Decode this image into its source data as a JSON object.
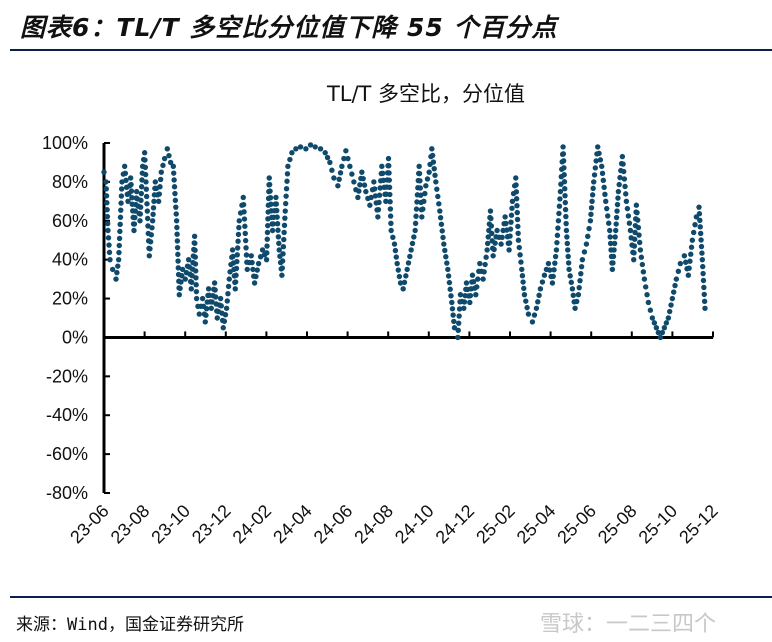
{
  "figure_title": "图表6：TL/T 多空比分位值下降 55 个百分点",
  "source": "来源：Wind，国金证券研究所",
  "watermark": "雪球：一二三四个",
  "colors": {
    "points": "#0f4a6c",
    "axis": "#000000",
    "rule": "#0b1f4d"
  },
  "chart_data": {
    "type": "scatter",
    "title": "TL/T 多空比，分位值",
    "xlabel": "",
    "ylabel": "",
    "ylim": [
      -80,
      100
    ],
    "y_ticks": [
      "100%",
      "80%",
      "60%",
      "40%",
      "20%",
      "0%",
      "-20%",
      "-40%",
      "-60%",
      "-80%"
    ],
    "y_tick_values": [
      100,
      80,
      60,
      40,
      20,
      0,
      -20,
      -40,
      -60,
      -80
    ],
    "x_range": [
      "2023-06-01",
      "2025-12-01"
    ],
    "x_ticks": [
      "23-06",
      "23-08",
      "23-10",
      "23-12",
      "24-02",
      "24-04",
      "24-06",
      "24-08",
      "24-10",
      "24-12",
      "25-02",
      "25-04",
      "25-06",
      "25-08",
      "25-10",
      "25-12"
    ],
    "grid": false,
    "legend": "none",
    "points": [
      [
        "2023-06-01",
        85
      ],
      [
        "2023-06-04",
        80
      ],
      [
        "2023-06-07",
        55
      ],
      [
        "2023-06-10",
        40
      ],
      [
        "2023-06-14",
        35
      ],
      [
        "2023-06-19",
        30
      ],
      [
        "2023-06-23",
        40
      ],
      [
        "2023-06-28",
        80
      ],
      [
        "2023-07-02",
        88
      ],
      [
        "2023-07-07",
        70
      ],
      [
        "2023-07-11",
        82
      ],
      [
        "2023-07-16",
        55
      ],
      [
        "2023-07-20",
        75
      ],
      [
        "2023-07-25",
        60
      ],
      [
        "2023-07-29",
        88
      ],
      [
        "2023-08-01",
        95
      ],
      [
        "2023-08-05",
        65
      ],
      [
        "2023-08-08",
        42
      ],
      [
        "2023-08-13",
        60
      ],
      [
        "2023-08-17",
        80
      ],
      [
        "2023-08-22",
        70
      ],
      [
        "2023-08-26",
        85
      ],
      [
        "2023-08-31",
        92
      ],
      [
        "2023-09-04",
        97
      ],
      [
        "2023-09-09",
        90
      ],
      [
        "2023-09-13",
        88
      ],
      [
        "2023-09-18",
        60
      ],
      [
        "2023-09-22",
        22
      ],
      [
        "2023-09-27",
        35
      ],
      [
        "2023-10-01",
        30
      ],
      [
        "2023-10-06",
        40
      ],
      [
        "2023-10-10",
        25
      ],
      [
        "2023-10-15",
        52
      ],
      [
        "2023-10-18",
        20
      ],
      [
        "2023-10-22",
        12
      ],
      [
        "2023-10-27",
        20
      ],
      [
        "2023-10-31",
        8
      ],
      [
        "2023-11-05",
        25
      ],
      [
        "2023-11-09",
        15
      ],
      [
        "2023-11-14",
        28
      ],
      [
        "2023-11-18",
        10
      ],
      [
        "2023-11-23",
        20
      ],
      [
        "2023-11-27",
        5
      ],
      [
        "2023-12-02",
        15
      ],
      [
        "2023-12-06",
        30
      ],
      [
        "2023-12-11",
        45
      ],
      [
        "2023-12-15",
        25
      ],
      [
        "2023-12-21",
        60
      ],
      [
        "2023-12-27",
        72
      ],
      [
        "2024-01-02",
        35
      ],
      [
        "2024-01-08",
        42
      ],
      [
        "2024-01-13",
        28
      ],
      [
        "2024-01-19",
        38
      ],
      [
        "2024-01-25",
        45
      ],
      [
        "2024-01-31",
        40
      ],
      [
        "2024-02-04",
        82
      ],
      [
        "2024-02-09",
        55
      ],
      [
        "2024-02-14",
        72
      ],
      [
        "2024-02-19",
        45
      ],
      [
        "2024-02-23",
        32
      ],
      [
        "2024-02-28",
        65
      ],
      [
        "2024-03-03",
        88
      ],
      [
        "2024-03-09",
        95
      ],
      [
        "2024-03-15",
        97
      ],
      [
        "2024-03-22",
        98
      ],
      [
        "2024-03-30",
        97
      ],
      [
        "2024-04-06",
        99
      ],
      [
        "2024-04-13",
        98
      ],
      [
        "2024-04-21",
        97
      ],
      [
        "2024-04-28",
        95
      ],
      [
        "2024-05-05",
        90
      ],
      [
        "2024-05-11",
        82
      ],
      [
        "2024-05-17",
        78
      ],
      [
        "2024-05-23",
        88
      ],
      [
        "2024-05-29",
        96
      ],
      [
        "2024-06-04",
        88
      ],
      [
        "2024-06-10",
        80
      ],
      [
        "2024-06-16",
        72
      ],
      [
        "2024-06-22",
        85
      ],
      [
        "2024-06-28",
        75
      ],
      [
        "2024-07-04",
        68
      ],
      [
        "2024-07-10",
        80
      ],
      [
        "2024-07-16",
        62
      ],
      [
        "2024-07-22",
        88
      ],
      [
        "2024-07-28",
        70
      ],
      [
        "2024-08-01",
        92
      ],
      [
        "2024-08-05",
        55
      ],
      [
        "2024-08-10",
        48
      ],
      [
        "2024-08-14",
        38
      ],
      [
        "2024-08-19",
        28
      ],
      [
        "2024-08-23",
        25
      ],
      [
        "2024-08-29",
        35
      ],
      [
        "2024-09-04",
        45
      ],
      [
        "2024-09-10",
        55
      ],
      [
        "2024-09-16",
        88
      ],
      [
        "2024-09-20",
        62
      ],
      [
        "2024-09-26",
        78
      ],
      [
        "2024-10-01",
        85
      ],
      [
        "2024-10-05",
        97
      ],
      [
        "2024-10-11",
        80
      ],
      [
        "2024-10-17",
        65
      ],
      [
        "2024-10-23",
        48
      ],
      [
        "2024-10-29",
        35
      ],
      [
        "2024-11-04",
        18
      ],
      [
        "2024-11-08",
        5
      ],
      [
        "2024-11-13",
        0
      ],
      [
        "2024-11-17",
        22
      ],
      [
        "2024-11-22",
        15
      ],
      [
        "2024-11-26",
        28
      ],
      [
        "2024-12-01",
        18
      ],
      [
        "2024-12-05",
        32
      ],
      [
        "2024-12-10",
        22
      ],
      [
        "2024-12-16",
        38
      ],
      [
        "2024-12-21",
        30
      ],
      [
        "2024-12-27",
        45
      ],
      [
        "2025-01-01",
        65
      ],
      [
        "2025-01-05",
        42
      ],
      [
        "2025-01-11",
        55
      ],
      [
        "2025-01-17",
        48
      ],
      [
        "2025-01-23",
        62
      ],
      [
        "2025-01-29",
        45
      ],
      [
        "2025-02-03",
        70
      ],
      [
        "2025-02-08",
        82
      ],
      [
        "2025-02-12",
        50
      ],
      [
        "2025-02-17",
        35
      ],
      [
        "2025-02-21",
        22
      ],
      [
        "2025-02-27",
        12
      ],
      [
        "2025-03-05",
        8
      ],
      [
        "2025-03-11",
        15
      ],
      [
        "2025-03-17",
        25
      ],
      [
        "2025-03-23",
        32
      ],
      [
        "2025-03-29",
        38
      ],
      [
        "2025-04-04",
        28
      ],
      [
        "2025-04-10",
        45
      ],
      [
        "2025-04-16",
        75
      ],
      [
        "2025-04-20",
        98
      ],
      [
        "2025-04-25",
        55
      ],
      [
        "2025-04-29",
        35
      ],
      [
        "2025-05-04",
        25
      ],
      [
        "2025-05-08",
        15
      ],
      [
        "2025-05-13",
        22
      ],
      [
        "2025-05-19",
        40
      ],
      [
        "2025-05-25",
        48
      ],
      [
        "2025-05-31",
        60
      ],
      [
        "2025-06-05",
        80
      ],
      [
        "2025-06-11",
        98
      ],
      [
        "2025-06-17",
        88
      ],
      [
        "2025-06-23",
        70
      ],
      [
        "2025-06-29",
        55
      ],
      [
        "2025-07-03",
        35
      ],
      [
        "2025-07-08",
        55
      ],
      [
        "2025-07-12",
        75
      ],
      [
        "2025-07-18",
        93
      ],
      [
        "2025-07-24",
        70
      ],
      [
        "2025-07-30",
        55
      ],
      [
        "2025-08-04",
        40
      ],
      [
        "2025-08-08",
        68
      ],
      [
        "2025-08-14",
        45
      ],
      [
        "2025-08-20",
        30
      ],
      [
        "2025-08-26",
        18
      ],
      [
        "2025-09-01",
        10
      ],
      [
        "2025-09-07",
        5
      ],
      [
        "2025-09-13",
        0
      ],
      [
        "2025-09-19",
        5
      ],
      [
        "2025-09-25",
        10
      ],
      [
        "2025-10-01",
        20
      ],
      [
        "2025-10-07",
        30
      ],
      [
        "2025-10-13",
        38
      ],
      [
        "2025-10-19",
        42
      ],
      [
        "2025-10-25",
        32
      ],
      [
        "2025-10-31",
        50
      ],
      [
        "2025-11-06",
        62
      ],
      [
        "2025-11-10",
        67
      ],
      [
        "2025-11-15",
        40
      ],
      [
        "2025-11-19",
        15
      ]
    ]
  }
}
